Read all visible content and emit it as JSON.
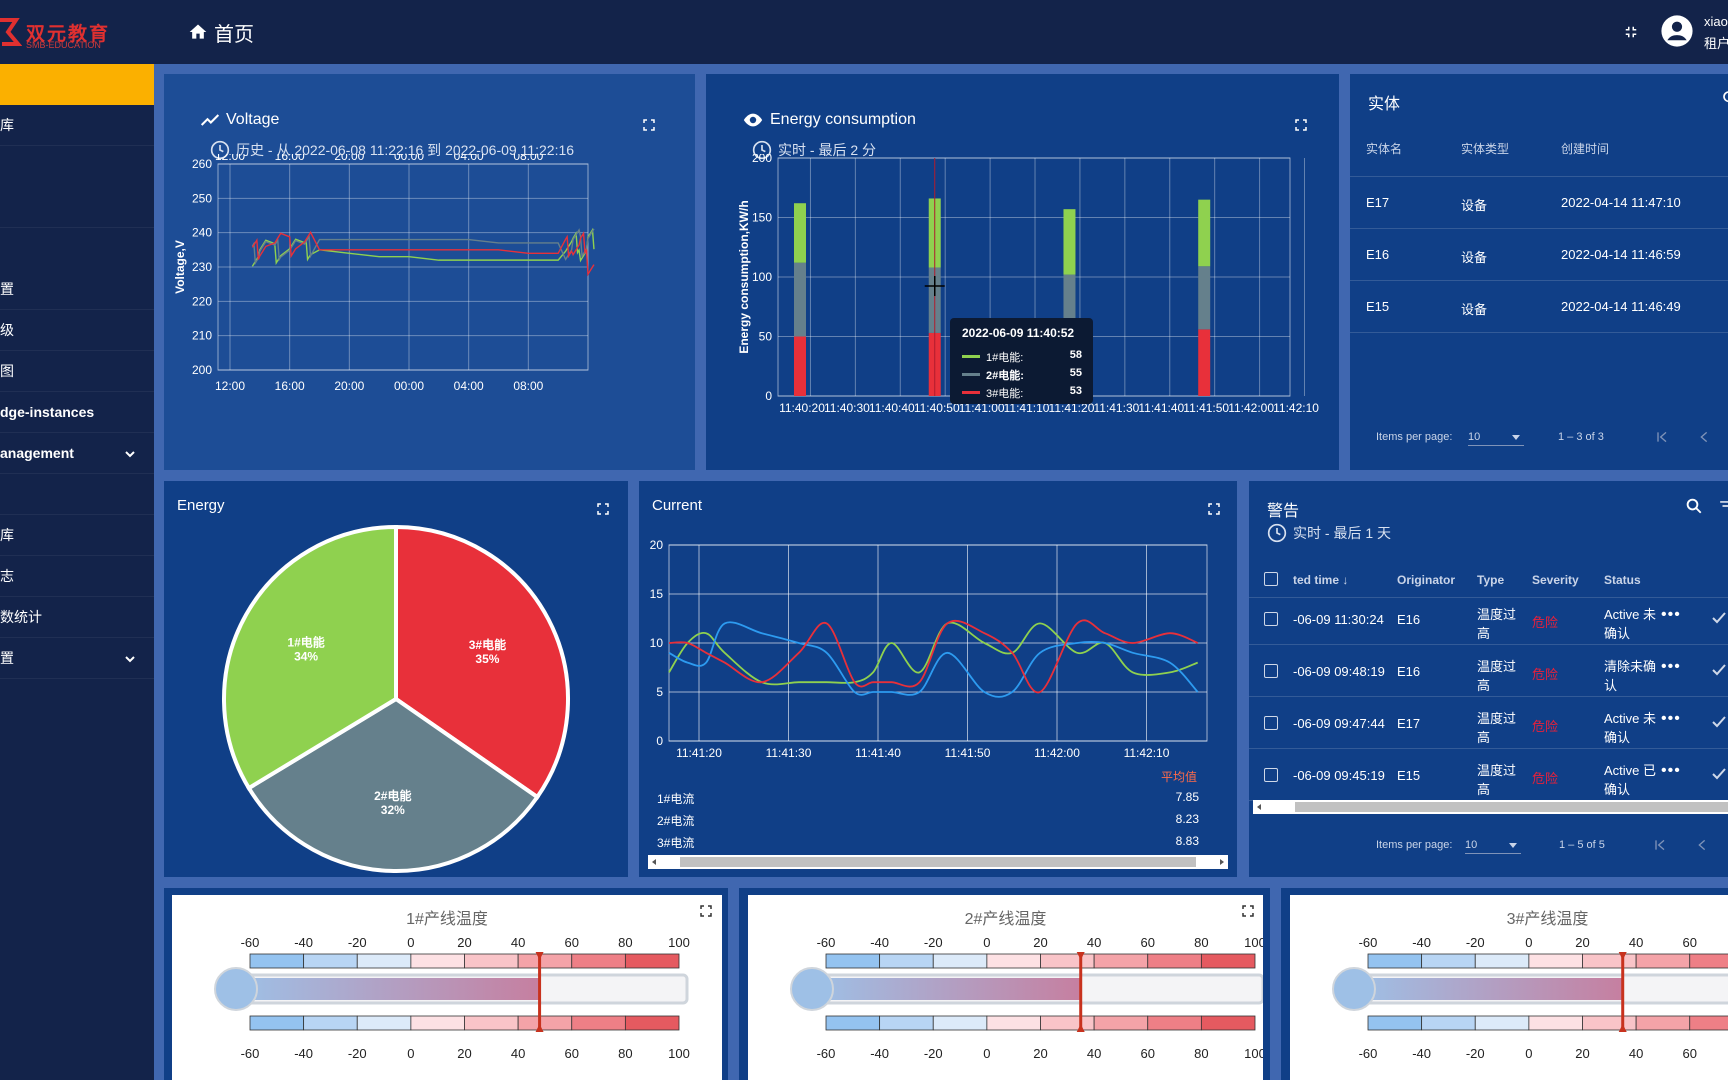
{
  "brand": {
    "name": "双元教育",
    "sub": "SMB-EDUCATION"
  },
  "header": {
    "title": "首页",
    "user_name": "xiao",
    "user_role": "租户"
  },
  "sidebar": {
    "items": [
      {
        "label": ""
      },
      {
        "label": "库"
      },
      {
        "label": ""
      },
      {
        "label": ""
      },
      {
        "label": "置"
      },
      {
        "label": "级"
      },
      {
        "label": "图"
      },
      {
        "label": "dge-instances"
      },
      {
        "label": "anagement",
        "expandable": true
      },
      {
        "label": ""
      },
      {
        "label": "库"
      },
      {
        "label": "志"
      },
      {
        "label": "数统计"
      },
      {
        "label": "置",
        "expandable": true
      }
    ]
  },
  "voltage": {
    "title": "Voltage",
    "sub": "历史 - 从 2022-06-08 11:22:16 到 2022-06-09 11:22:16"
  },
  "energy_consumption": {
    "title": "Energy consumption",
    "sub": "实时 - 最后 2 分",
    "tooltip": {
      "time": "2022-06-09 11:40:52",
      "rows": [
        {
          "label": "1#电能:",
          "value": "58",
          "color": "#8fd14f"
        },
        {
          "label": "2#电能:",
          "value": "55",
          "color": "#65808c",
          "bold": true
        },
        {
          "label": "3#电能:",
          "value": "53",
          "color": "#e8303a"
        }
      ]
    }
  },
  "entities": {
    "title": "实体",
    "headers": [
      "实体名",
      "实体类型",
      "创建时间"
    ],
    "rows": [
      [
        "E17",
        "设备",
        "2022-04-14 11:47:10"
      ],
      [
        "E16",
        "设备",
        "2022-04-14 11:46:59"
      ],
      [
        "E15",
        "设备",
        "2022-04-14 11:46:49"
      ]
    ],
    "items_per_page_label": "Items per page:",
    "items_per_page": "10",
    "range": "1 – 3 of 3"
  },
  "energy_pie": {
    "title": "Energy"
  },
  "current": {
    "title": "Current",
    "avg_header": "平均值",
    "avgs": [
      {
        "label": "1#电流",
        "value": "7.85"
      },
      {
        "label": "2#电流",
        "value": "8.23"
      },
      {
        "label": "3#电流",
        "value": "8.83"
      }
    ]
  },
  "alarms": {
    "title": "警告",
    "sub": "实时 - 最后 1 天",
    "headers": [
      "ted time",
      "Originator",
      "Type",
      "Severity",
      "Status"
    ],
    "rows": [
      {
        "time": "-06-09 11:30:24",
        "originator": "E16",
        "type": [
          "温度过",
          "高"
        ],
        "severity": "危险",
        "status": [
          "Active 未",
          "确认"
        ]
      },
      {
        "time": "-06-09 09:48:19",
        "originator": "E16",
        "type": [
          "温度过",
          "高"
        ],
        "severity": "危险",
        "status": [
          "清除未确",
          "认"
        ]
      },
      {
        "time": "-06-09 09:47:44",
        "originator": "E17",
        "type": [
          "温度过",
          "高"
        ],
        "severity": "危险",
        "status": [
          "Active 未",
          "确认"
        ]
      },
      {
        "time": "-06-09 09:45:19",
        "originator": "E15",
        "type": [
          "温度过",
          "高"
        ],
        "severity": "危险",
        "status": [
          "Active 已",
          "确认"
        ]
      }
    ],
    "items_per_page_label": "Items per page:",
    "items_per_page": "10",
    "range": "1 – 5 of 5"
  },
  "thermometers": [
    {
      "title": "1#产线温度",
      "value": 48
    },
    {
      "title": "2#产线温度",
      "value": 35
    },
    {
      "title": "3#产线温度",
      "value": 35
    }
  ],
  "colors": {
    "green": "#8fd14f",
    "gray": "#65808c",
    "red": "#e8303a",
    "blue": "#2d9bf0",
    "accent": "#fbb000"
  },
  "chart_data": [
    {
      "type": "line",
      "title": "Voltage",
      "ylabel": "Voltage,V",
      "x_ticks_top": [
        "12:00",
        "16:00",
        "20:00",
        "00:00",
        "04:00",
        "08:00"
      ],
      "x_ticks": [
        "12:00",
        "16:00",
        "20:00",
        "00:00",
        "04:00",
        "08:00"
      ],
      "ylim": [
        200,
        260
      ],
      "y_ticks": [
        200,
        210,
        220,
        230,
        240,
        250,
        260
      ],
      "series": [
        {
          "color": "#8fd14f",
          "x_hours": [
            1.5,
            2,
            3,
            4,
            5,
            6,
            8,
            10,
            12,
            14,
            16,
            18,
            20,
            22,
            22.5,
            23,
            23.5,
            24
          ],
          "values": [
            233,
            235,
            234,
            236,
            235,
            235,
            234,
            233,
            233,
            232,
            232,
            232,
            232,
            232,
            236,
            237,
            234,
            238
          ]
        },
        {
          "color": "#65808c",
          "x_hours": [
            1.5,
            2,
            3,
            4,
            5,
            6,
            8,
            10,
            12,
            14,
            16,
            18,
            20,
            22,
            22.5,
            23,
            23.5,
            24
          ],
          "values": [
            234,
            236,
            235,
            237,
            236,
            238,
            238,
            238,
            238,
            238,
            238,
            237,
            237,
            237,
            235,
            238,
            236,
            239
          ]
        },
        {
          "color": "#e8303a",
          "x_hours": [
            1.5,
            2,
            3,
            4,
            5,
            6,
            8,
            10,
            12,
            14,
            16,
            18,
            20,
            22,
            22.5,
            23,
            23.5,
            24
          ],
          "values": [
            235,
            236,
            237,
            236,
            238,
            235,
            235,
            235,
            235,
            235,
            235,
            235,
            234,
            234,
            236,
            235,
            237,
            230
          ]
        }
      ]
    },
    {
      "type": "bar",
      "title": "Energy consumption",
      "ylabel": "Energy consumption,KW/h",
      "ylim": [
        0,
        200
      ],
      "y_ticks": [
        0,
        50,
        100,
        150,
        200
      ],
      "categories": [
        "11:40:20",
        "11:40:30",
        "11:40:40",
        "11:40:50",
        "11:41:00",
        "11:41:10",
        "11:41:20",
        "11:41:30",
        "11:41:40",
        "11:41:50",
        "11:42:00",
        "11:42:10"
      ],
      "stacks": [
        {
          "x": "11:40:22",
          "values": [
            50,
            62,
            50
          ]
        },
        {
          "x": "11:40:52",
          "values": [
            53,
            55,
            58
          ]
        },
        {
          "x": "11:41:22",
          "values": [
            0,
            102,
            55
          ]
        },
        {
          "x": "11:41:52",
          "values": [
            56,
            53,
            56
          ]
        }
      ],
      "series": [
        {
          "name": "3#电能",
          "color": "#e8303a"
        },
        {
          "name": "2#电能",
          "color": "#65808c"
        },
        {
          "name": "1#电能",
          "color": "#8fd14f"
        }
      ]
    },
    {
      "type": "pie",
      "title": "Energy",
      "slices": [
        {
          "label": "3#电能",
          "value": 35,
          "color": "#e8303a"
        },
        {
          "label": "2#电能",
          "value": 32,
          "color": "#65808c"
        },
        {
          "label": "1#电能",
          "value": 34,
          "color": "#8fd14f"
        }
      ]
    },
    {
      "type": "line",
      "title": "Current",
      "x_ticks": [
        "11:41:20",
        "11:41:30",
        "11:41:40",
        "11:41:50",
        "11:42:00",
        "11:42:10"
      ],
      "ylim": [
        0,
        20
      ],
      "y_ticks": [
        0,
        5,
        10,
        15,
        20
      ],
      "series": [
        {
          "name": "1#电流",
          "color": "#8fd14f",
          "x": [
            0,
            2,
            4,
            6,
            10,
            14,
            17,
            20,
            22,
            24,
            27,
            30,
            34,
            37,
            40,
            44,
            47,
            50,
            54,
            57
          ],
          "values": [
            7,
            10,
            11,
            9,
            6,
            6,
            6,
            6,
            7,
            10,
            7,
            12,
            10,
            9,
            12,
            9,
            10,
            7,
            7,
            8
          ]
        },
        {
          "name": "2#电流",
          "color": "#2d9bf0",
          "x": [
            0,
            2,
            4,
            6,
            10,
            14,
            17,
            20,
            22,
            24,
            27,
            30,
            34,
            37,
            40,
            44,
            47,
            50,
            54,
            57
          ],
          "values": [
            9,
            8,
            8,
            12,
            11,
            10,
            9,
            5,
            5,
            5,
            5,
            9,
            5,
            5,
            9,
            10,
            10,
            9,
            8,
            5
          ]
        },
        {
          "name": "3#电流",
          "color": "#e8303a",
          "x": [
            0,
            2,
            4,
            6,
            10,
            14,
            17,
            20,
            22,
            24,
            27,
            30,
            34,
            37,
            40,
            44,
            47,
            50,
            54,
            57
          ],
          "values": [
            10,
            10,
            9,
            8,
            6,
            9,
            12,
            6,
            6,
            6,
            6,
            12,
            11,
            9,
            5,
            12,
            11,
            10,
            11,
            10
          ]
        }
      ]
    }
  ]
}
